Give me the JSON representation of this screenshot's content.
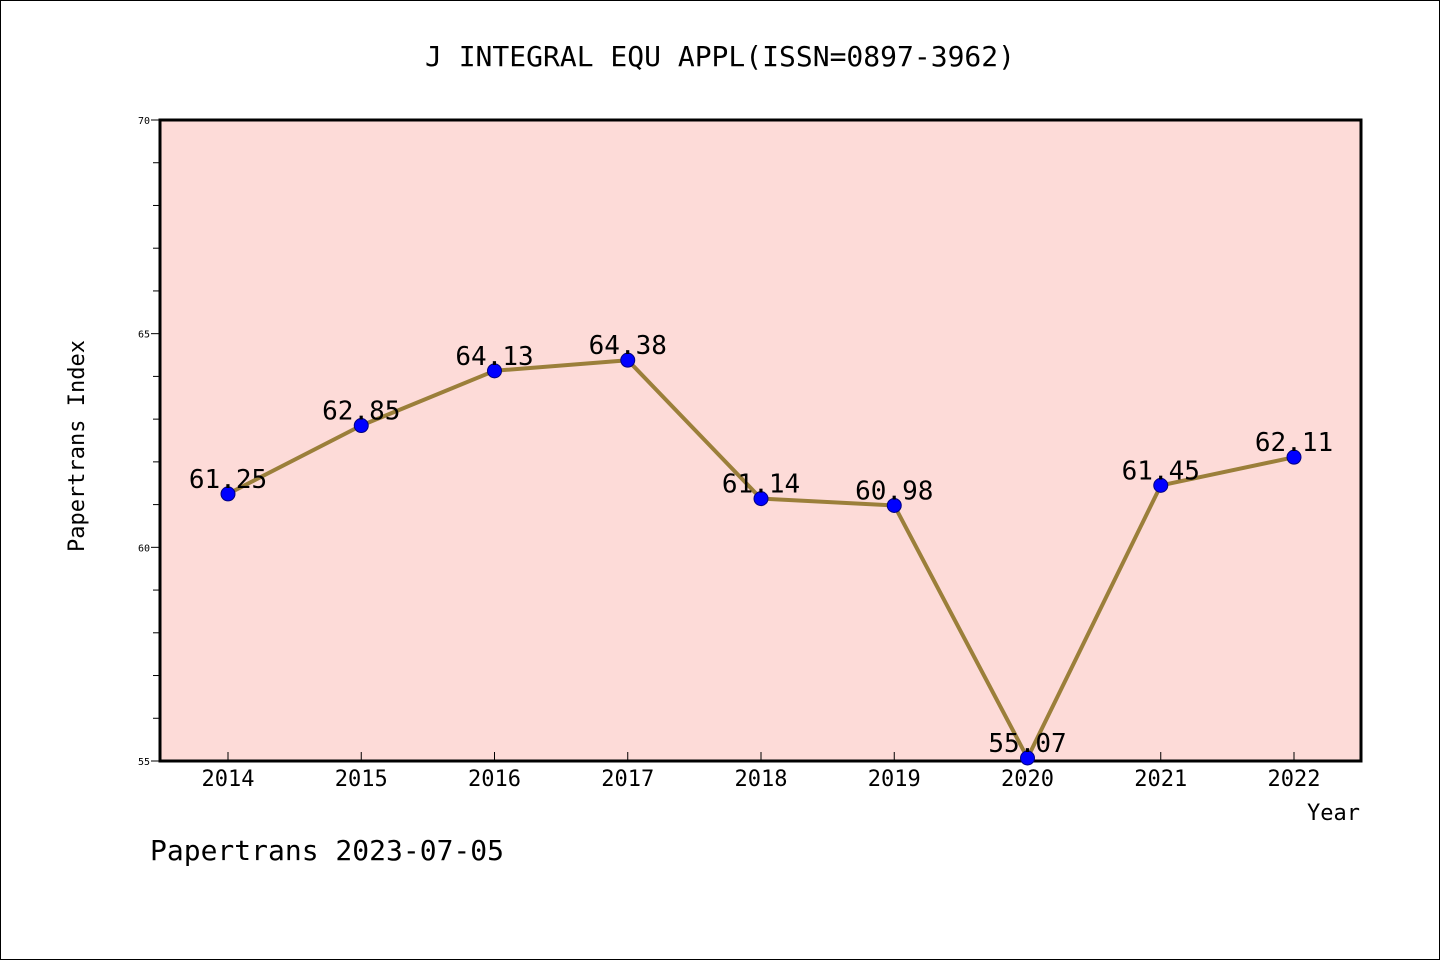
{
  "chart_data": {
    "type": "line",
    "title": "J INTEGRAL EQU APPL(ISSN=0897-3962)",
    "xlabel": "Year",
    "ylabel": "Papertrans Index",
    "categories": [
      "2014",
      "2015",
      "2016",
      "2017",
      "2018",
      "2019",
      "2020",
      "2021",
      "2022"
    ],
    "series": [
      {
        "values": [
          61.25,
          62.85,
          64.13,
          64.38,
          61.14,
          60.98,
          55.07,
          61.45,
          62.11
        ]
      }
    ],
    "data_labels": [
      "61.25",
      "62.85",
      "64.13",
      "64.38",
      "61.14",
      "60.98",
      "55.07",
      "61.45",
      "62.11"
    ],
    "ylim": [
      55,
      70
    ],
    "y_ticks": [
      55,
      60,
      65,
      70
    ],
    "y_tick_labels": [
      "55",
      "60",
      "65",
      "70"
    ],
    "grid": false,
    "legend": "none",
    "colors": {
      "plot_background": "#fddbd8",
      "line": "#9b7f3a",
      "marker": "#0000ff",
      "axis": "#000000"
    }
  },
  "footer": {
    "text": "Papertrans 2023-07-05"
  }
}
